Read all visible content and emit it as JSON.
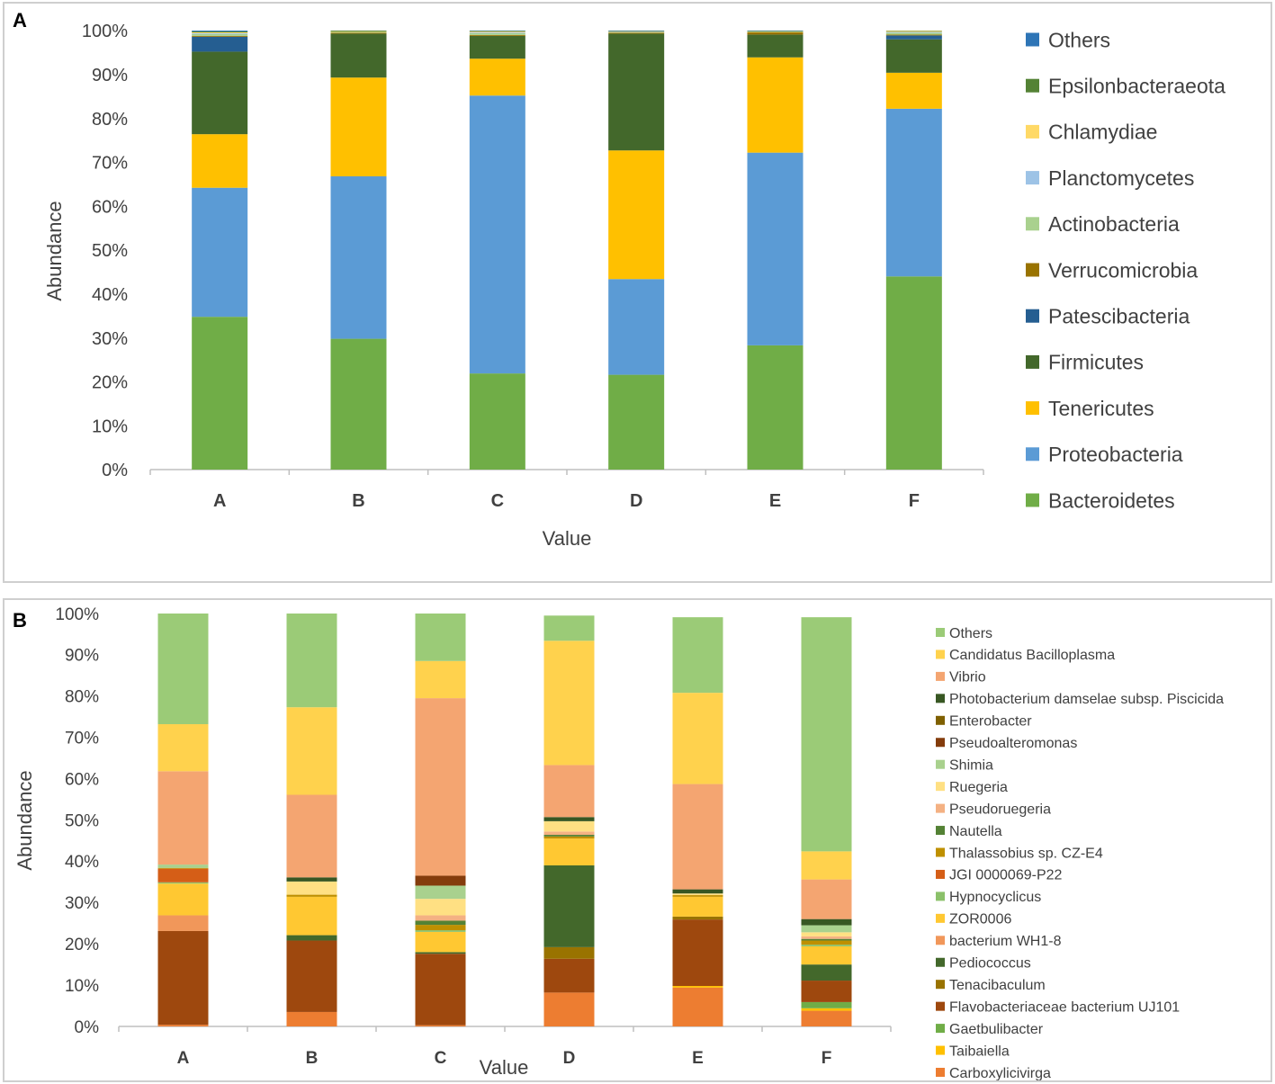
{
  "chart_data": [
    {
      "type": "bar",
      "stacked": true,
      "panel_label": "A",
      "categories": [
        "A",
        "B",
        "C",
        "D",
        "E",
        "F"
      ],
      "xlabel": "Value",
      "ylabel": "Abundance",
      "yticks": [
        "0%",
        "10%",
        "20%",
        "30%",
        "40%",
        "50%",
        "60%",
        "70%",
        "80%",
        "90%",
        "100%"
      ],
      "ylim": [
        0,
        100
      ],
      "legend_order": [
        "Others",
        "Epsilonbacteraeota",
        "Chlamydiae",
        "Planctomycetes",
        "Actinobacteria",
        "Verrucomicrobia",
        "Patescibacteria",
        "Firmicutes",
        "Tenericutes",
        "Proteobacteria",
        "Bacteroidetes"
      ],
      "series": [
        {
          "name": "Bacteroidetes",
          "color": "#70ad47",
          "values": [
            34.8,
            29.8,
            21.9,
            21.6,
            28.3,
            44.0
          ]
        },
        {
          "name": "Proteobacteria",
          "color": "#5b9bd5",
          "values": [
            29.4,
            37.0,
            63.3,
            21.8,
            43.9,
            38.2
          ]
        },
        {
          "name": "Tenericutes",
          "color": "#ffc000",
          "values": [
            12.2,
            22.5,
            8.4,
            29.3,
            21.7,
            8.2
          ]
        },
        {
          "name": "Firmicutes",
          "color": "#43682b",
          "values": [
            18.8,
            10.0,
            5.2,
            26.6,
            5.2,
            7.6
          ]
        },
        {
          "name": "Patescibacteria",
          "color": "#255e91",
          "values": [
            3.4,
            0.0,
            0.0,
            0.0,
            0.0,
            0.9
          ]
        },
        {
          "name": "Verrucomicrobia",
          "color": "#997300",
          "values": [
            0.2,
            0.2,
            0.2,
            0.2,
            0.5,
            0.2
          ]
        },
        {
          "name": "Actinobacteria",
          "color": "#a9d18e",
          "values": [
            0.4,
            0.2,
            0.4,
            0.1,
            0.1,
            0.4
          ]
        },
        {
          "name": "Planctomycetes",
          "color": "#9dc3e6",
          "values": [
            0.2,
            0.0,
            0.2,
            0.1,
            0.0,
            0.2
          ]
        },
        {
          "name": "Chlamydiae",
          "color": "#ffd966",
          "values": [
            0.2,
            0.1,
            0.2,
            0.1,
            0.1,
            0.2
          ]
        },
        {
          "name": "Epsilonbacteraeota",
          "color": "#548235",
          "values": [
            0.2,
            0.2,
            0.1,
            0.1,
            0.1,
            0.1
          ]
        },
        {
          "name": "Others",
          "color": "#2e75b6",
          "values": [
            0.2,
            0.0,
            0.1,
            0.1,
            0.1,
            0.0
          ]
        }
      ]
    },
    {
      "type": "bar",
      "stacked": true,
      "panel_label": "B",
      "categories": [
        "A",
        "B",
        "C",
        "D",
        "E",
        "F"
      ],
      "xlabel": "Value",
      "ylabel": "Abundance",
      "yticks": [
        "0%",
        "10%",
        "20%",
        "30%",
        "40%",
        "50%",
        "60%",
        "70%",
        "80%",
        "90%",
        "100%"
      ],
      "ylim": [
        0,
        100
      ],
      "legend_order": [
        "Others",
        "Candidatus Bacilloplasma",
        "Vibrio",
        "Photobacterium damselae subsp. Piscicida",
        "Enterobacter",
        "Pseudoalteromonas",
        "Shimia",
        "Ruegeria",
        "Pseudoruegeria",
        "Nautella",
        "Thalassobius sp. CZ-E4",
        "JGI 0000069-P22",
        "Hypnocyclicus",
        "ZOR0006",
        "bacterium WH1-8",
        "Pediococcus",
        "Tenacibaculum",
        "Flavobacteriaceae bacterium UJ101",
        "Gaetbulibacter",
        "Taibaiella",
        "Carboxylicivirga"
      ],
      "series": [
        {
          "name": "Carboxylicivirga",
          "color": "#ed7d31",
          "values": [
            0.4,
            3.5,
            0.3,
            8.2,
            9.4,
            3.8
          ]
        },
        {
          "name": "Taibaiella",
          "color": "#ffc000",
          "values": [
            0.0,
            0.0,
            0.0,
            0.0,
            0.4,
            0.6
          ]
        },
        {
          "name": "Gaetbulibacter",
          "color": "#70ad47",
          "values": [
            0.0,
            0.0,
            0.0,
            0.0,
            0.0,
            1.5
          ]
        },
        {
          "name": "Flavobacteriaceae bacterium UJ101",
          "color": "#9e480e",
          "values": [
            22.7,
            17.3,
            17.3,
            8.2,
            16.1,
            5.2
          ]
        },
        {
          "name": "Tenacibaculum",
          "color": "#997300",
          "values": [
            0.0,
            0.0,
            0.0,
            2.8,
            0.7,
            0.0
          ]
        },
        {
          "name": "Pediococcus",
          "color": "#43682b",
          "values": [
            0.0,
            1.3,
            0.4,
            19.8,
            0.0,
            3.9
          ]
        },
        {
          "name": "bacterium WH1-8",
          "color": "#f1975a",
          "values": [
            3.8,
            0.0,
            0.0,
            0.0,
            0.0,
            0.0
          ]
        },
        {
          "name": "ZOR0006",
          "color": "#ffc832",
          "values": [
            7.7,
            9.3,
            4.9,
            6.5,
            4.8,
            4.4
          ]
        },
        {
          "name": "Hypnocyclicus",
          "color": "#8bc16a",
          "values": [
            0.3,
            0.0,
            0.4,
            0.0,
            0.0,
            0.4
          ]
        },
        {
          "name": "JGI 0000069-P22",
          "color": "#d55e17",
          "values": [
            3.3,
            0.0,
            0.0,
            0.0,
            0.0,
            0.0
          ]
        },
        {
          "name": "Thalassobius sp. CZ-E4",
          "color": "#bf9000",
          "values": [
            0.2,
            0.5,
            1.3,
            0.5,
            0.4,
            1.0
          ]
        },
        {
          "name": "Nautella",
          "color": "#548235",
          "values": [
            0.0,
            0.0,
            1.0,
            0.4,
            0.0,
            0.4
          ]
        },
        {
          "name": "Pseudoruegeria",
          "color": "#f4b183",
          "values": [
            0.0,
            0.0,
            1.3,
            0.8,
            0.0,
            0.6
          ]
        },
        {
          "name": "Ruegeria",
          "color": "#ffe083",
          "values": [
            0.0,
            3.2,
            4.0,
            2.5,
            0.4,
            1.0
          ]
        },
        {
          "name": "Shimia",
          "color": "#a9d18e",
          "values": [
            0.8,
            0.0,
            3.2,
            0.0,
            0.0,
            1.7
          ]
        },
        {
          "name": "Pseudoalteromonas",
          "color": "#843c0c",
          "values": [
            0.0,
            0.0,
            2.4,
            0.0,
            0.0,
            0.0
          ]
        },
        {
          "name": "Enterobacter",
          "color": "#7f6000",
          "values": [
            0.0,
            0.0,
            0.0,
            0.0,
            0.0,
            0.0
          ]
        },
        {
          "name": "Photobacterium damselae subsp. Piscicida",
          "color": "#385723",
          "values": [
            0.0,
            1.0,
            0.0,
            1.0,
            1.0,
            1.5
          ]
        },
        {
          "name": "Vibrio",
          "color": "#f4a571",
          "values": [
            22.6,
            20.0,
            43.0,
            12.6,
            25.5,
            9.6
          ]
        },
        {
          "name": "Candidatus Bacilloplasma",
          "color": "#ffd24d",
          "values": [
            11.4,
            21.2,
            9.0,
            30.1,
            22.1,
            6.8
          ]
        },
        {
          "name": "Others",
          "color": "#9bcb77",
          "values": [
            26.8,
            22.7,
            11.5,
            6.1,
            18.3,
            56.7
          ]
        }
      ]
    }
  ]
}
